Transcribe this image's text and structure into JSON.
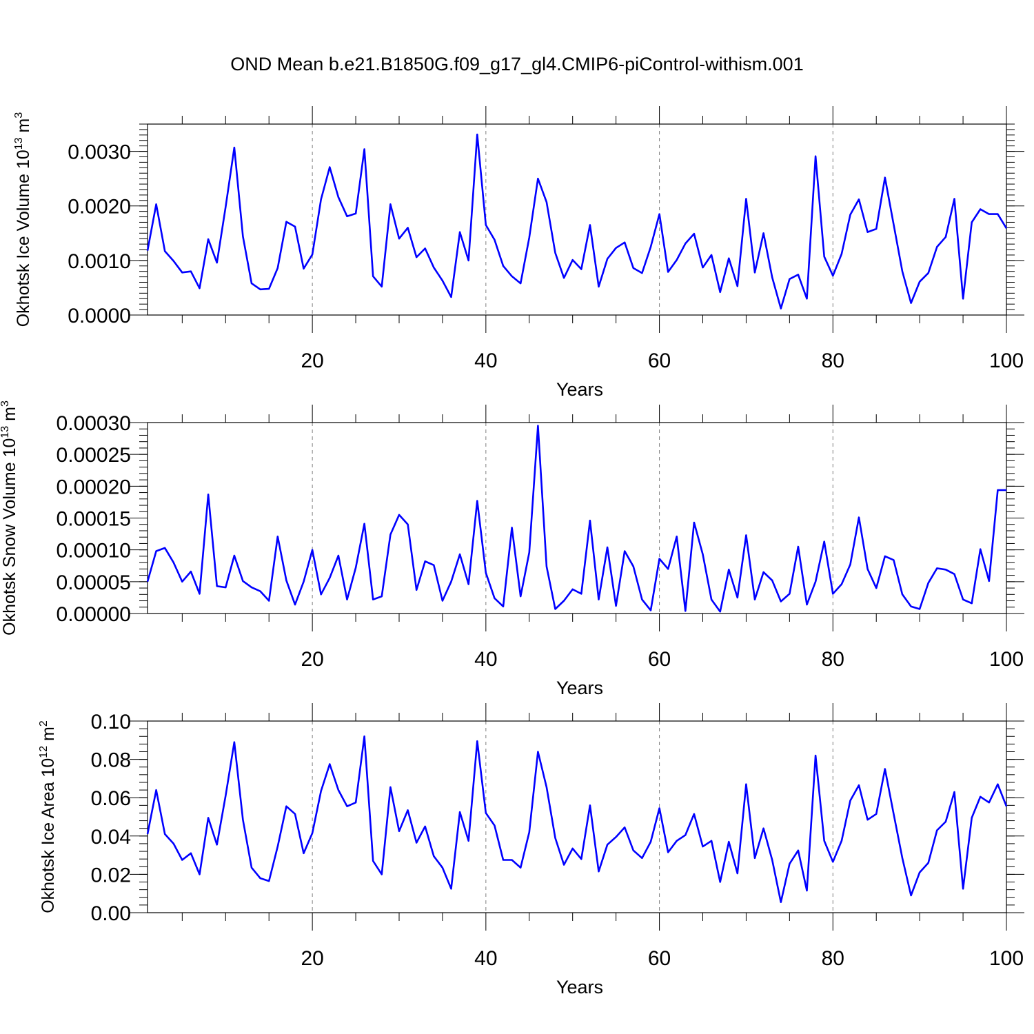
{
  "title": "OND Mean b.e21.B1850G.f09_g17_gl4.CMIP6-piControl-withism.001",
  "style": {
    "line_color": "#0000ff",
    "axis_color": "#000000",
    "grid_color": "#808080"
  },
  "chart_data": [
    {
      "type": "line",
      "title": "",
      "xlabel": "Years",
      "ylabel": "Okhotsk Ice Volume 10",
      "ylabel_sup": "13",
      "ylabel_unit": " m",
      "ylabel_unit_sup": "3",
      "xlim": [
        1,
        100
      ],
      "ylim": [
        0,
        0.0035
      ],
      "xticks": [
        20,
        40,
        60,
        80,
        100
      ],
      "xtick_labels": [
        "20",
        "40",
        "60",
        "80",
        "100"
      ],
      "yticks": [
        0,
        0.001,
        0.002,
        0.003
      ],
      "ytick_labels": [
        "0.0000",
        "0.0010",
        "0.0020",
        "0.0030"
      ],
      "grid": "vertical dashed at major x ticks",
      "series": [
        {
          "x": [
            1,
            2,
            3,
            4,
            5,
            6,
            7,
            8,
            9,
            10,
            11,
            12,
            13,
            14,
            15,
            16,
            17,
            18,
            19,
            20,
            21,
            22,
            23,
            24,
            25,
            26,
            27,
            28,
            29,
            30,
            31,
            32,
            33,
            34,
            35,
            36,
            37,
            38,
            39,
            40,
            41,
            42,
            43,
            44,
            45,
            46,
            47,
            48,
            49,
            50,
            51,
            52,
            53,
            54,
            55,
            56,
            57,
            58,
            59,
            60,
            61,
            62,
            63,
            64,
            65,
            66,
            67,
            68,
            69,
            70,
            71,
            72,
            73,
            74,
            75,
            76,
            77,
            78,
            79,
            80,
            81,
            82,
            83,
            84,
            85,
            86,
            87,
            88,
            89,
            90,
            91,
            92,
            93,
            94,
            95,
            96,
            97,
            98,
            99,
            100
          ],
          "values": [
            0.00118,
            0.00203,
            0.00117,
            0.00099,
            0.00078,
            0.0008,
            0.00049,
            0.00139,
            0.00096,
            0.00198,
            0.00307,
            0.00144,
            0.00058,
            0.00047,
            0.00048,
            0.00086,
            0.00171,
            0.00162,
            0.00085,
            0.00111,
            0.00212,
            0.00271,
            0.00216,
            0.00181,
            0.00186,
            0.00304,
            0.00071,
            0.00052,
            0.00203,
            0.0014,
            0.0016,
            0.00106,
            0.00122,
            0.00087,
            0.00063,
            0.00033,
            0.00152,
            0.001,
            0.00331,
            0.00165,
            0.00138,
            0.0009,
            0.00071,
            0.00058,
            0.00142,
            0.0025,
            0.00207,
            0.00114,
            0.00068,
            0.00101,
            0.00084,
            0.00165,
            0.00052,
            0.00103,
            0.00123,
            0.00133,
            0.00086,
            0.00077,
            0.00125,
            0.00185,
            0.00079,
            0.00101,
            0.00131,
            0.00149,
            0.00087,
            0.0011,
            0.00042,
            0.00104,
            0.00053,
            0.00213,
            0.00078,
            0.0015,
            0.00069,
            0.00012,
            0.00066,
            0.00074,
            0.0003,
            0.00291,
            0.00107,
            0.00072,
            0.00112,
            0.00184,
            0.00212,
            0.00152,
            0.00158,
            0.00252,
            0.00166,
            0.0008,
            0.00022,
            0.00061,
            0.00077,
            0.00125,
            0.00143,
            0.00213,
            0.0003,
            0.0017,
            0.00194,
            0.00185,
            0.00185,
            0.00159
          ]
        }
      ]
    },
    {
      "type": "line",
      "title": "",
      "xlabel": "Years",
      "ylabel": "Okhotsk Snow Volume 10",
      "ylabel_sup": "13",
      "ylabel_unit": " m",
      "ylabel_unit_sup": "3",
      "xlim": [
        1,
        100
      ],
      "ylim": [
        0,
        0.0003
      ],
      "xticks": [
        20,
        40,
        60,
        80,
        100
      ],
      "xtick_labels": [
        "20",
        "40",
        "60",
        "80",
        "100"
      ],
      "yticks": [
        0,
        5e-05,
        0.0001,
        0.00015,
        0.0002,
        0.00025,
        0.0003
      ],
      "ytick_labels": [
        "0.00000",
        "0.00005",
        "0.00010",
        "0.00015",
        "0.00020",
        "0.00025",
        "0.00030"
      ],
      "grid": "vertical dashed at major x ticks",
      "series": [
        {
          "x": [
            1,
            2,
            3,
            4,
            5,
            6,
            7,
            8,
            9,
            10,
            11,
            12,
            13,
            14,
            15,
            16,
            17,
            18,
            19,
            20,
            21,
            22,
            23,
            24,
            25,
            26,
            27,
            28,
            29,
            30,
            31,
            32,
            33,
            34,
            35,
            36,
            37,
            38,
            39,
            40,
            41,
            42,
            43,
            44,
            45,
            46,
            47,
            48,
            49,
            50,
            51,
            52,
            53,
            54,
            55,
            56,
            57,
            58,
            59,
            60,
            61,
            62,
            63,
            64,
            65,
            66,
            67,
            68,
            69,
            70,
            71,
            72,
            73,
            74,
            75,
            76,
            77,
            78,
            79,
            80,
            81,
            82,
            83,
            84,
            85,
            86,
            87,
            88,
            89,
            90,
            91,
            92,
            93,
            94,
            95,
            96,
            97,
            98,
            99,
            100
          ],
          "values": [
            5e-05,
            9.8e-05,
            0.000103,
            8e-05,
            5e-05,
            6.6e-05,
            3.1e-05,
            0.000187,
            4.3e-05,
            4.1e-05,
            9.1e-05,
            5.1e-05,
            4.1e-05,
            3.5e-05,
            2e-05,
            0.000121,
            5.2e-05,
            1.4e-05,
            5e-05,
            0.0001,
            3e-05,
            5.6e-05,
            9.1e-05,
            2.2e-05,
            7.2e-05,
            0.000141,
            2.2e-05,
            2.7e-05,
            0.000124,
            0.000155,
            0.00014,
            3.7e-05,
            8.2e-05,
            7.6e-05,
            2e-05,
            5e-05,
            9.3e-05,
            4.6e-05,
            0.000177,
            6.4e-05,
            2.4e-05,
            1.1e-05,
            0.000135,
            2.7e-05,
            9.6e-05,
            0.000295,
            7.4e-05,
            7e-06,
            2e-05,
            3.8e-05,
            3.1e-05,
            0.000146,
            2.2e-05,
            0.000104,
            1.2e-05,
            9.8e-05,
            7.4e-05,
            2.2e-05,
            5e-06,
            8.6e-05,
            7e-05,
            0.000121,
            4e-06,
            0.000143,
            9.3e-05,
            2.2e-05,
            3e-06,
            6.9e-05,
            2.5e-05,
            0.000123,
            2.2e-05,
            6.5e-05,
            5.2e-05,
            1.9e-05,
            3.1e-05,
            0.000105,
            1.4e-05,
            5e-05,
            0.000113,
            3.1e-05,
            4.6e-05,
            7.7e-05,
            0.000151,
            7e-05,
            4e-05,
            9e-05,
            8.4e-05,
            3e-05,
            1.1e-05,
            7e-06,
            4.8e-05,
            7.1e-05,
            6.9e-05,
            6.2e-05,
            2.2e-05,
            1.6e-05,
            0.000101,
            5.1e-05,
            0.000194,
            0.000194
          ]
        }
      ]
    },
    {
      "type": "line",
      "title": "",
      "xlabel": "Years",
      "ylabel": "Okhotsk Ice Area 10",
      "ylabel_sup": "12",
      "ylabel_unit": " m",
      "ylabel_unit_sup": "2",
      "xlim": [
        1,
        100
      ],
      "ylim": [
        0,
        0.1
      ],
      "xticks": [
        20,
        40,
        60,
        80,
        100
      ],
      "xtick_labels": [
        "20",
        "40",
        "60",
        "80",
        "100"
      ],
      "yticks": [
        0,
        0.02,
        0.04,
        0.06,
        0.08,
        0.1
      ],
      "ytick_labels": [
        "0.00",
        "0.02",
        "0.04",
        "0.06",
        "0.08",
        "0.10"
      ],
      "grid": "vertical dashed at major x ticks",
      "series": [
        {
          "x": [
            1,
            2,
            3,
            4,
            5,
            6,
            7,
            8,
            9,
            10,
            11,
            12,
            13,
            14,
            15,
            16,
            17,
            18,
            19,
            20,
            21,
            22,
            23,
            24,
            25,
            26,
            27,
            28,
            29,
            30,
            31,
            32,
            33,
            34,
            35,
            36,
            37,
            38,
            39,
            40,
            41,
            42,
            43,
            44,
            45,
            46,
            47,
            48,
            49,
            50,
            51,
            52,
            53,
            54,
            55,
            56,
            57,
            58,
            59,
            60,
            61,
            62,
            63,
            64,
            65,
            66,
            67,
            68,
            69,
            70,
            71,
            72,
            73,
            74,
            75,
            76,
            77,
            78,
            79,
            80,
            81,
            82,
            83,
            84,
            85,
            86,
            87,
            88,
            89,
            90,
            91,
            92,
            93,
            94,
            95,
            96,
            97,
            98,
            99,
            100
          ],
          "values": [
            0.041,
            0.064,
            0.041,
            0.036,
            0.0275,
            0.031,
            0.02,
            0.0495,
            0.0355,
            0.061,
            0.089,
            0.0485,
            0.0235,
            0.018,
            0.0165,
            0.0345,
            0.0555,
            0.0515,
            0.031,
            0.0415,
            0.0635,
            0.0775,
            0.064,
            0.0555,
            0.0575,
            0.092,
            0.027,
            0.02,
            0.0655,
            0.0425,
            0.0535,
            0.0365,
            0.045,
            0.0295,
            0.0235,
            0.0125,
            0.0525,
            0.0375,
            0.0895,
            0.052,
            0.0455,
            0.0275,
            0.0275,
            0.0235,
            0.042,
            0.084,
            0.0655,
            0.039,
            0.025,
            0.0335,
            0.028,
            0.056,
            0.0215,
            0.0355,
            0.0395,
            0.0445,
            0.0325,
            0.0285,
            0.037,
            0.0545,
            0.0315,
            0.0375,
            0.0405,
            0.0515,
            0.0345,
            0.0375,
            0.016,
            0.037,
            0.0205,
            0.067,
            0.0285,
            0.044,
            0.0275,
            0.0055,
            0.0255,
            0.0325,
            0.0115,
            0.082,
            0.0375,
            0.0265,
            0.0375,
            0.0585,
            0.0665,
            0.0485,
            0.0515,
            0.075,
            0.0515,
            0.0285,
            0.009,
            0.021,
            0.026,
            0.043,
            0.0475,
            0.063,
            0.0125,
            0.0495,
            0.0605,
            0.0575,
            0.067,
            0.0555
          ]
        }
      ]
    }
  ]
}
